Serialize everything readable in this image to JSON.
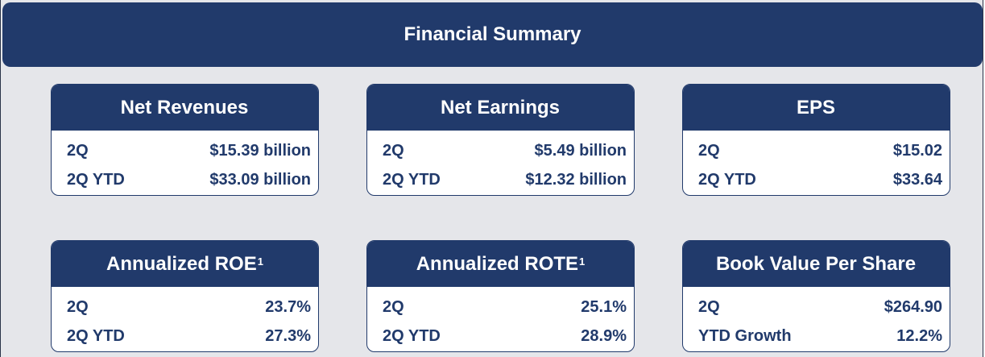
{
  "title": "Financial Summary",
  "cards": [
    {
      "title": "Net Revenues",
      "sup": "",
      "rows": [
        {
          "label": "2Q",
          "value": "$15.39 billion"
        },
        {
          "label": "2Q YTD",
          "value": "$33.09 billion"
        }
      ]
    },
    {
      "title": "Net Earnings",
      "sup": "",
      "rows": [
        {
          "label": "2Q",
          "value": "$5.49 billion"
        },
        {
          "label": "2Q YTD",
          "value": "$12.32 billion"
        }
      ]
    },
    {
      "title": "EPS",
      "sup": "",
      "rows": [
        {
          "label": "2Q",
          "value": "$15.02"
        },
        {
          "label": "2Q YTD",
          "value": "$33.64"
        }
      ]
    },
    {
      "title": "Annualized ROE",
      "sup": "1",
      "rows": [
        {
          "label": "2Q",
          "value": "23.7%"
        },
        {
          "label": "2Q YTD",
          "value": "27.3%"
        }
      ]
    },
    {
      "title": "Annualized ROTE",
      "sup": "1",
      "rows": [
        {
          "label": "2Q",
          "value": "25.1%"
        },
        {
          "label": "2Q YTD",
          "value": "28.9%"
        }
      ]
    },
    {
      "title": "Book Value Per Share",
      "sup": "",
      "rows": [
        {
          "label": "2Q",
          "value": "$264.90"
        },
        {
          "label": "YTD Growth",
          "value": "12.2%"
        }
      ]
    }
  ]
}
